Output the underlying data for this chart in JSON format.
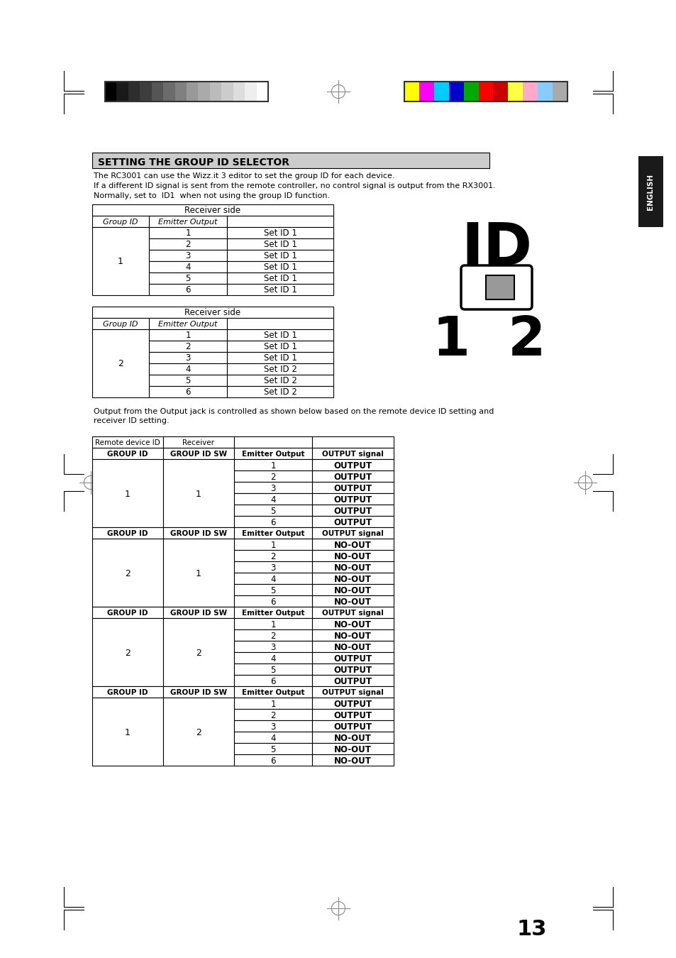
{
  "title": "SETTING THE GROUP ID SELECTOR",
  "page_number": "13",
  "intro_text": [
    "The RC3001 can use the Wizz.it 3 editor to set the group ID for each device.",
    "If a different ID signal is sent from the remote controller, no control signal is output from the RX3001.",
    "Normally, set to  ID1  when not using the group ID function."
  ],
  "table1_header": [
    "Receiver side",
    "",
    ""
  ],
  "table1_col_headers": [
    "Group ID",
    "Emitter Output",
    ""
  ],
  "table1_data": [
    [
      "1",
      "1",
      "Set ID 1"
    ],
    [
      "1",
      "2",
      "Set ID 1"
    ],
    [
      "1",
      "3",
      "Set ID 1"
    ],
    [
      "1",
      "4",
      "Set ID 1"
    ],
    [
      "1",
      "5",
      "Set ID 1"
    ],
    [
      "1",
      "6",
      "Set ID 1"
    ]
  ],
  "table2_col_headers": [
    "Group ID",
    "Emitter Output",
    ""
  ],
  "table2_data": [
    [
      "2",
      "1",
      "Set ID 1"
    ],
    [
      "2",
      "2",
      "Set ID 1"
    ],
    [
      "2",
      "3",
      "Set ID 1"
    ],
    [
      "2",
      "4",
      "Set ID 2"
    ],
    [
      "2",
      "5",
      "Set ID 2"
    ],
    [
      "2",
      "6",
      "Set ID 2"
    ]
  ],
  "output_text": [
    "Output from the Output jack is controlled as shown below based on the remote device ID setting and",
    "receiver ID setting."
  ],
  "big_table_header1": [
    "Remote device ID",
    "Receiver",
    "",
    ""
  ],
  "big_table_header2": [
    "GROUP ID",
    "GROUP ID SW",
    "Emitter Output",
    "OUTPUT signal"
  ],
  "big_table_sections": [
    {
      "group_id": "1",
      "sw": "1",
      "rows": [
        [
          "1",
          "OUTPUT"
        ],
        [
          "2",
          "OUTPUT"
        ],
        [
          "3",
          "OUTPUT"
        ],
        [
          "4",
          "OUTPUT"
        ],
        [
          "5",
          "OUTPUT"
        ],
        [
          "6",
          "OUTPUT"
        ]
      ]
    },
    {
      "group_id": "2",
      "sw": "1",
      "rows": [
        [
          "1",
          "NO-OUT"
        ],
        [
          "2",
          "NO-OUT"
        ],
        [
          "3",
          "NO-OUT"
        ],
        [
          "4",
          "NO-OUT"
        ],
        [
          "5",
          "NO-OUT"
        ],
        [
          "6",
          "NO-OUT"
        ]
      ]
    },
    {
      "group_id": "2",
      "sw": "2",
      "rows": [
        [
          "1",
          "NO-OUT"
        ],
        [
          "2",
          "NO-OUT"
        ],
        [
          "3",
          "NO-OUT"
        ],
        [
          "4",
          "OUTPUT"
        ],
        [
          "5",
          "OUTPUT"
        ],
        [
          "6",
          "OUTPUT"
        ]
      ]
    },
    {
      "group_id": "1",
      "sw": "2",
      "rows": [
        [
          "1",
          "OUTPUT"
        ],
        [
          "2",
          "OUTPUT"
        ],
        [
          "3",
          "OUTPUT"
        ],
        [
          "4",
          "NO-OUT"
        ],
        [
          "5",
          "NO-OUT"
        ],
        [
          "6",
          "NO-OUT"
        ]
      ]
    }
  ],
  "grayscale_colors": [
    "#000000",
    "#1a1a1a",
    "#2d2d2d",
    "#3d3d3d",
    "#555555",
    "#6b6b6b",
    "#808080",
    "#999999",
    "#aaaaaa",
    "#bbbbbb",
    "#cccccc",
    "#dddddd",
    "#eeeeee",
    "#ffffff"
  ],
  "color_swatches": [
    "#ffff00",
    "#ff00ff",
    "#00ccff",
    "#0000cc",
    "#00aa00",
    "#ff0000",
    "#cc0000",
    "#ffff44",
    "#ffaacc",
    "#88ccff",
    "#aaaaaa"
  ],
  "bg_color": "#ffffff",
  "header_bg": "#c8c8c8",
  "english_tab_color": "#1a1a1a",
  "english_text_color": "#ffffff",
  "border_color": "#000000",
  "registration_mark_color": "#808080"
}
